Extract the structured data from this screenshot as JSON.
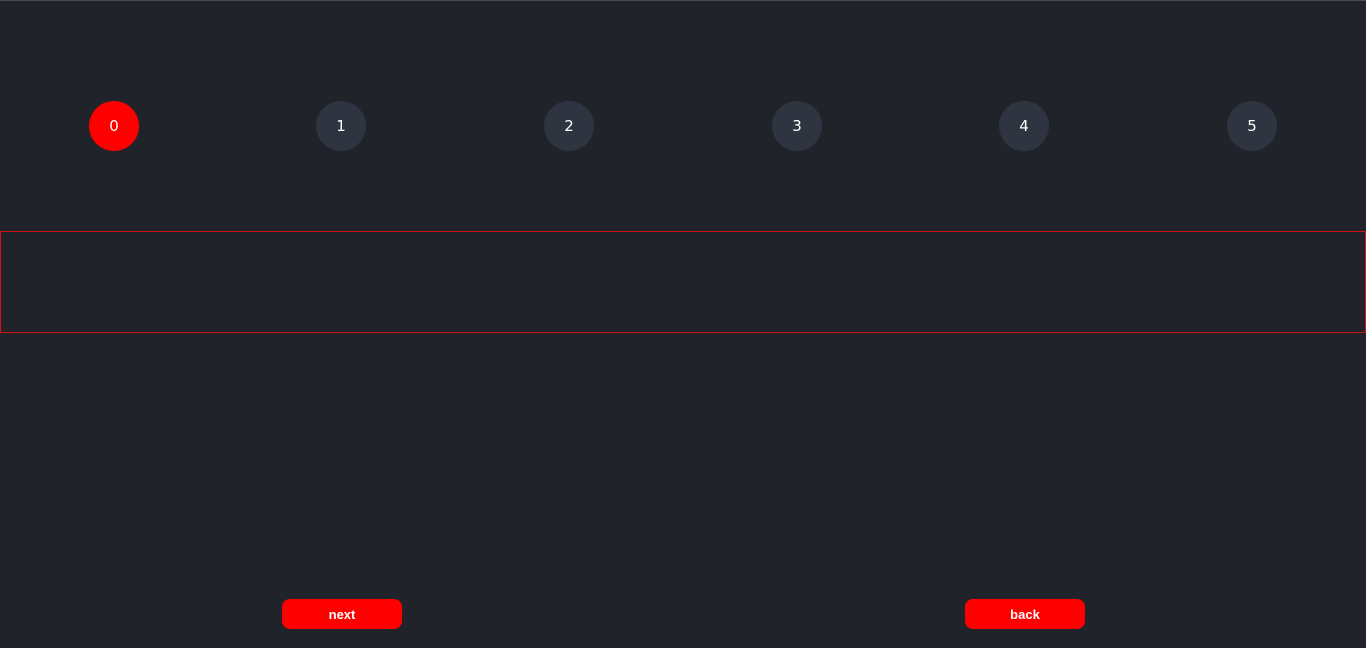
{
  "stepper": {
    "steps": [
      {
        "label": "0",
        "active": true
      },
      {
        "label": "1",
        "active": false
      },
      {
        "label": "2",
        "active": false
      },
      {
        "label": "3",
        "active": false
      },
      {
        "label": "4",
        "active": false
      },
      {
        "label": "5",
        "active": false
      }
    ],
    "active_color": "#ff0000",
    "inactive_color": "#2f3441"
  },
  "content": {},
  "controls": {
    "next_label": "next",
    "back_label": "back",
    "button_color": "#ff0000"
  },
  "colors": {
    "background": "#21232b",
    "box_border": "#d0141a"
  }
}
